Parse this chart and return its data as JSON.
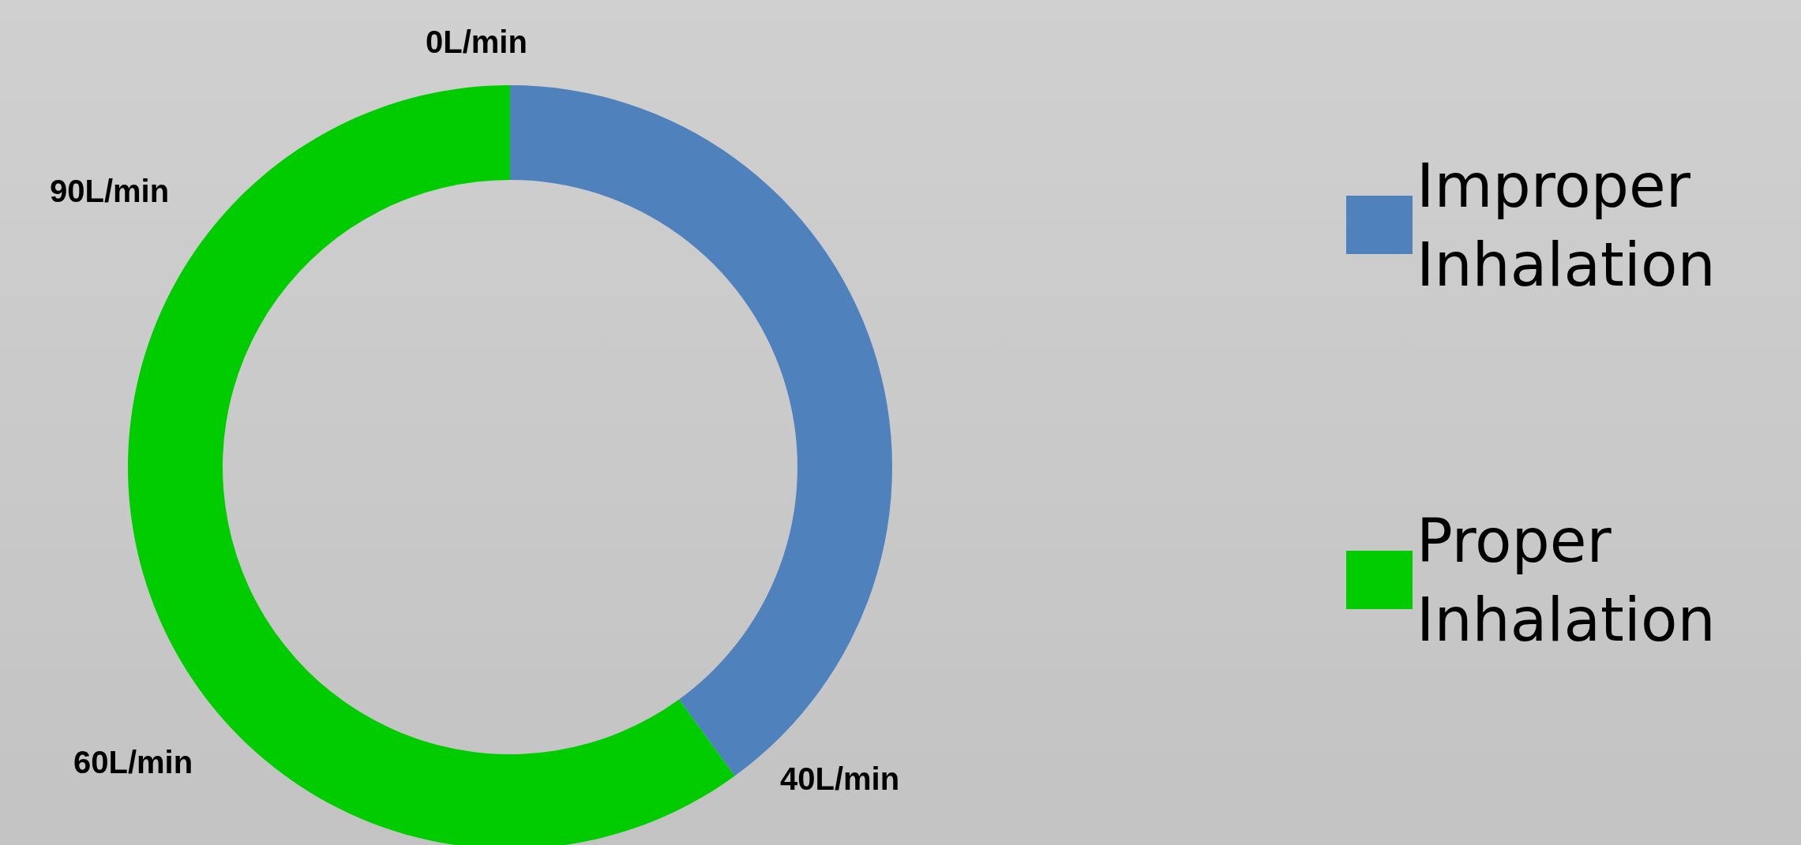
{
  "chart_data": {
    "type": "donut",
    "categories": [
      "Improper Inhalation",
      "Proper Inhalation"
    ],
    "values": [
      40,
      60
    ],
    "colors": [
      "#4f81bd",
      "#00cc00"
    ],
    "legend": "right",
    "annotations": [
      "0L/min",
      "40L/min",
      "60L/min",
      "90L/min"
    ]
  }
}
